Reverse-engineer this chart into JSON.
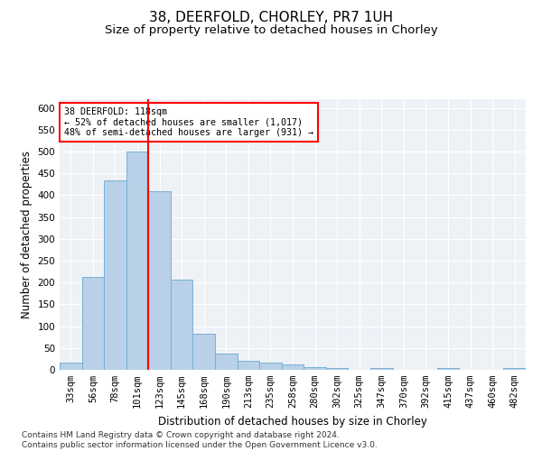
{
  "title": "38, DEERFOLD, CHORLEY, PR7 1UH",
  "subtitle": "Size of property relative to detached houses in Chorley",
  "xlabel": "Distribution of detached houses by size in Chorley",
  "ylabel": "Number of detached properties",
  "categories": [
    "33sqm",
    "56sqm",
    "78sqm",
    "101sqm",
    "123sqm",
    "145sqm",
    "168sqm",
    "190sqm",
    "213sqm",
    "235sqm",
    "258sqm",
    "280sqm",
    "302sqm",
    "325sqm",
    "347sqm",
    "370sqm",
    "392sqm",
    "415sqm",
    "437sqm",
    "460sqm",
    "482sqm"
  ],
  "values": [
    17,
    212,
    435,
    500,
    410,
    207,
    83,
    37,
    20,
    17,
    12,
    7,
    5,
    0,
    5,
    0,
    0,
    5,
    0,
    0,
    5
  ],
  "bar_color": "#b8d0e8",
  "bar_edge_color": "#7aafd4",
  "vline_index": 3,
  "vline_color": "red",
  "annotation_line1": "38 DEERFOLD: 118sqm",
  "annotation_line2": "← 52% of detached houses are smaller (1,017)",
  "annotation_line3": "48% of semi-detached houses are larger (931) →",
  "annotation_box_color": "white",
  "annotation_box_edge": "red",
  "ylim": [
    0,
    620
  ],
  "yticks": [
    0,
    50,
    100,
    150,
    200,
    250,
    300,
    350,
    400,
    450,
    500,
    550,
    600
  ],
  "footer": "Contains HM Land Registry data © Crown copyright and database right 2024.\nContains public sector information licensed under the Open Government Licence v3.0.",
  "title_fontsize": 11,
  "subtitle_fontsize": 9.5,
  "tick_fontsize": 7.5,
  "label_fontsize": 8.5,
  "footer_fontsize": 6.5,
  "bg_color": "#eef2f7",
  "grid_color": "white"
}
